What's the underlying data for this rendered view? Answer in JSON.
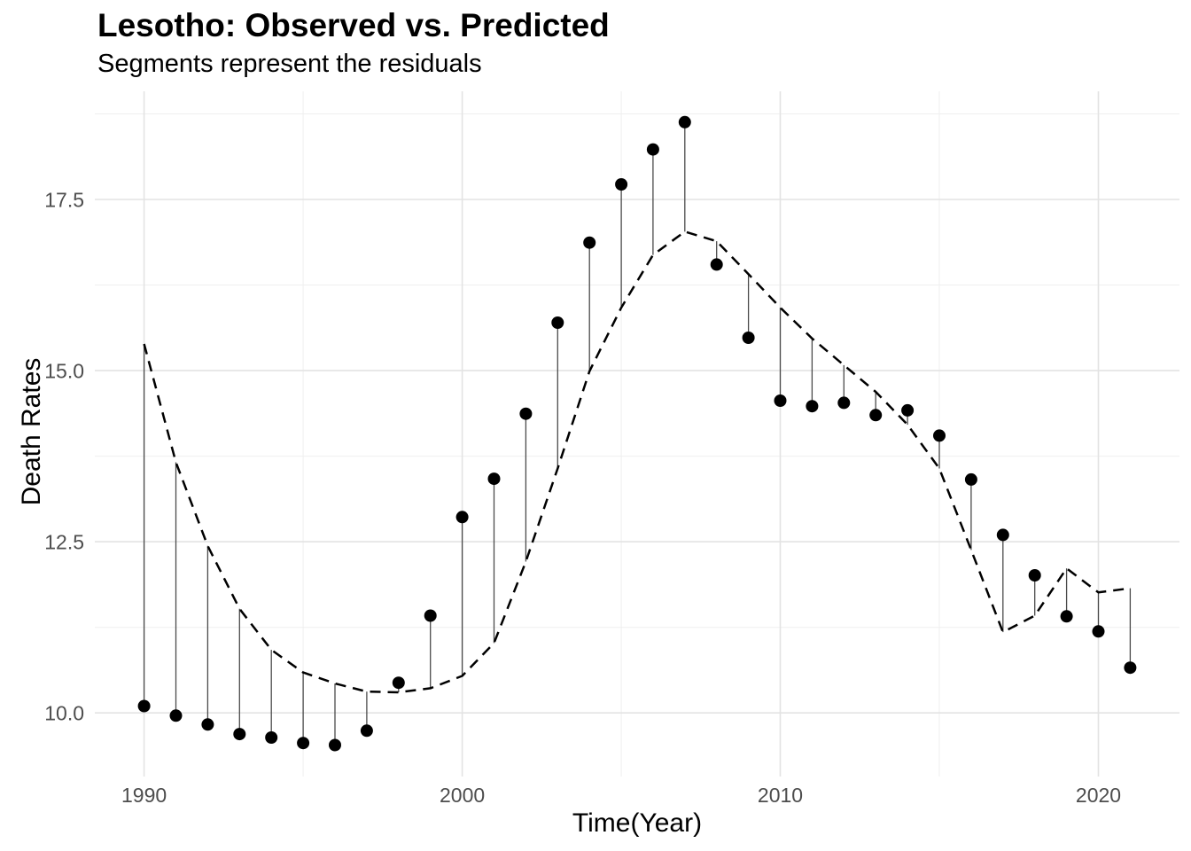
{
  "header": {
    "title": "Lesotho: Observed vs. Predicted",
    "subtitle": "Segments represent the residuals"
  },
  "chart_data": {
    "type": "scatter",
    "title": "Lesotho: Observed vs. Predicted",
    "subtitle": "Segments represent the residuals",
    "xlabel": "Time(Year)",
    "ylabel": "Death Rates",
    "x": [
      1990,
      1991,
      1992,
      1993,
      1994,
      1995,
      1996,
      1997,
      1998,
      1999,
      2000,
      2001,
      2002,
      2003,
      2004,
      2005,
      2006,
      2007,
      2008,
      2009,
      2010,
      2011,
      2012,
      2013,
      2014,
      2015,
      2016,
      2017,
      2018,
      2019,
      2020,
      2021
    ],
    "series": [
      {
        "name": "Observed",
        "style": "points",
        "values": [
          10.1,
          9.96,
          9.83,
          9.69,
          9.64,
          9.56,
          9.53,
          9.74,
          10.44,
          11.42,
          12.86,
          13.42,
          14.37,
          15.7,
          16.87,
          17.72,
          18.23,
          18.63,
          16.55,
          15.48,
          14.56,
          14.48,
          14.53,
          14.35,
          14.42,
          14.05,
          13.41,
          12.6,
          12.01,
          11.41,
          11.19,
          10.66
        ]
      },
      {
        "name": "Predicted",
        "style": "dashed-line",
        "values": [
          15.39,
          13.66,
          12.44,
          11.52,
          10.92,
          10.59,
          10.43,
          10.31,
          10.3,
          10.36,
          10.54,
          11.02,
          12.21,
          13.57,
          14.99,
          15.92,
          16.69,
          17.03,
          16.89,
          16.41,
          15.92,
          15.47,
          15.08,
          14.69,
          14.21,
          13.57,
          12.38,
          11.18,
          11.42,
          12.11,
          11.76,
          11.82
        ]
      }
    ],
    "residual_segments": true,
    "x_domain": [
      1988.45,
      2022.55
    ],
    "y_domain": [
      9.07,
      19.08
    ],
    "x_ticks": {
      "values": [
        1990,
        2000,
        2010,
        2020
      ],
      "labels": [
        "1990",
        "2000",
        "2010",
        "2020"
      ],
      "minor": [
        1995,
        2005,
        2015
      ]
    },
    "y_ticks": {
      "values": [
        10.0,
        12.5,
        15.0,
        17.5
      ],
      "labels": [
        "10.0",
        "12.5",
        "15.0",
        "17.5"
      ],
      "minor": [
        11.25,
        13.75,
        16.25,
        18.75
      ]
    },
    "grid": "on",
    "legend": "none",
    "colors": {
      "point": "#000000",
      "line": "#000000",
      "segment": "#4a4a4a",
      "grid_major": "#e3e3e3",
      "grid_minor": "#efefef",
      "tick_label": "#4d4d4d",
      "text": "#000000",
      "background": "#ffffff"
    }
  }
}
